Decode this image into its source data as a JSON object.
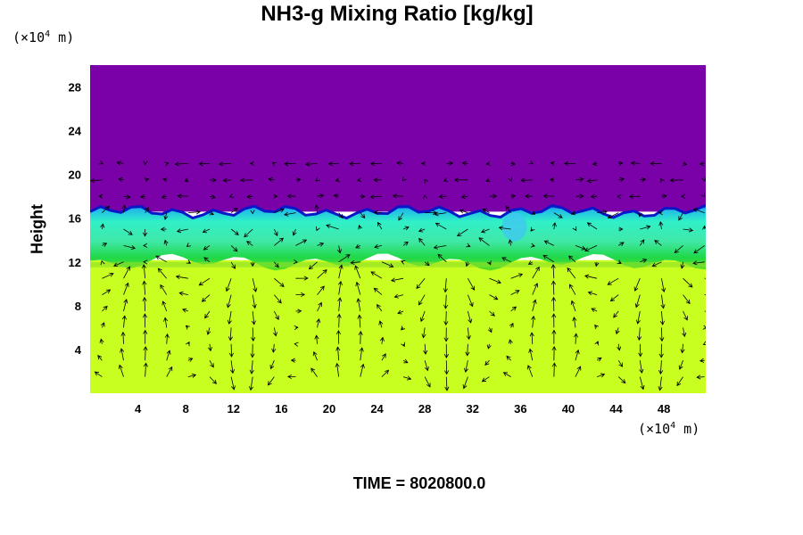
{
  "chart_data": {
    "type": "heatmap",
    "title": "NH3-g Mixing Ratio [kg/kg]",
    "ylabel": "Height",
    "x_unit": {
      "prefix": "(×10",
      "exp": "4",
      "suffix": " m)"
    },
    "y_unit": {
      "prefix": "(×10",
      "exp": "4",
      "suffix": " m)"
    },
    "x_ticks": [
      "4",
      "8",
      "12",
      "16",
      "20",
      "24",
      "28",
      "32",
      "36",
      "40",
      "44",
      "48"
    ],
    "y_ticks": [
      "4",
      "8",
      "12",
      "16",
      "20",
      "24",
      "28"
    ],
    "xlim": [
      0,
      51.5
    ],
    "ylim": [
      0,
      30
    ],
    "colors": {
      "top_layer": "#7a00a8",
      "boundary": "#0818c8",
      "mid_layer": "#30e8c0",
      "mid_green": "#10d838",
      "lower_layer": "#c8ff20",
      "vectors": "#000000"
    },
    "layers": [
      {
        "name": "upper",
        "y_from": 16.6,
        "y_to": 30,
        "color": "#7a00a8"
      },
      {
        "name": "transition",
        "y_from": 12.0,
        "y_to": 16.6,
        "color": "#30e8c0"
      },
      {
        "name": "lower",
        "y_from": 0,
        "y_to": 12.0,
        "color": "#c8ff20"
      }
    ],
    "overlay": "wind vectors (arrows)"
  },
  "footer": {
    "time_text": "TIME = 8020800.0"
  }
}
